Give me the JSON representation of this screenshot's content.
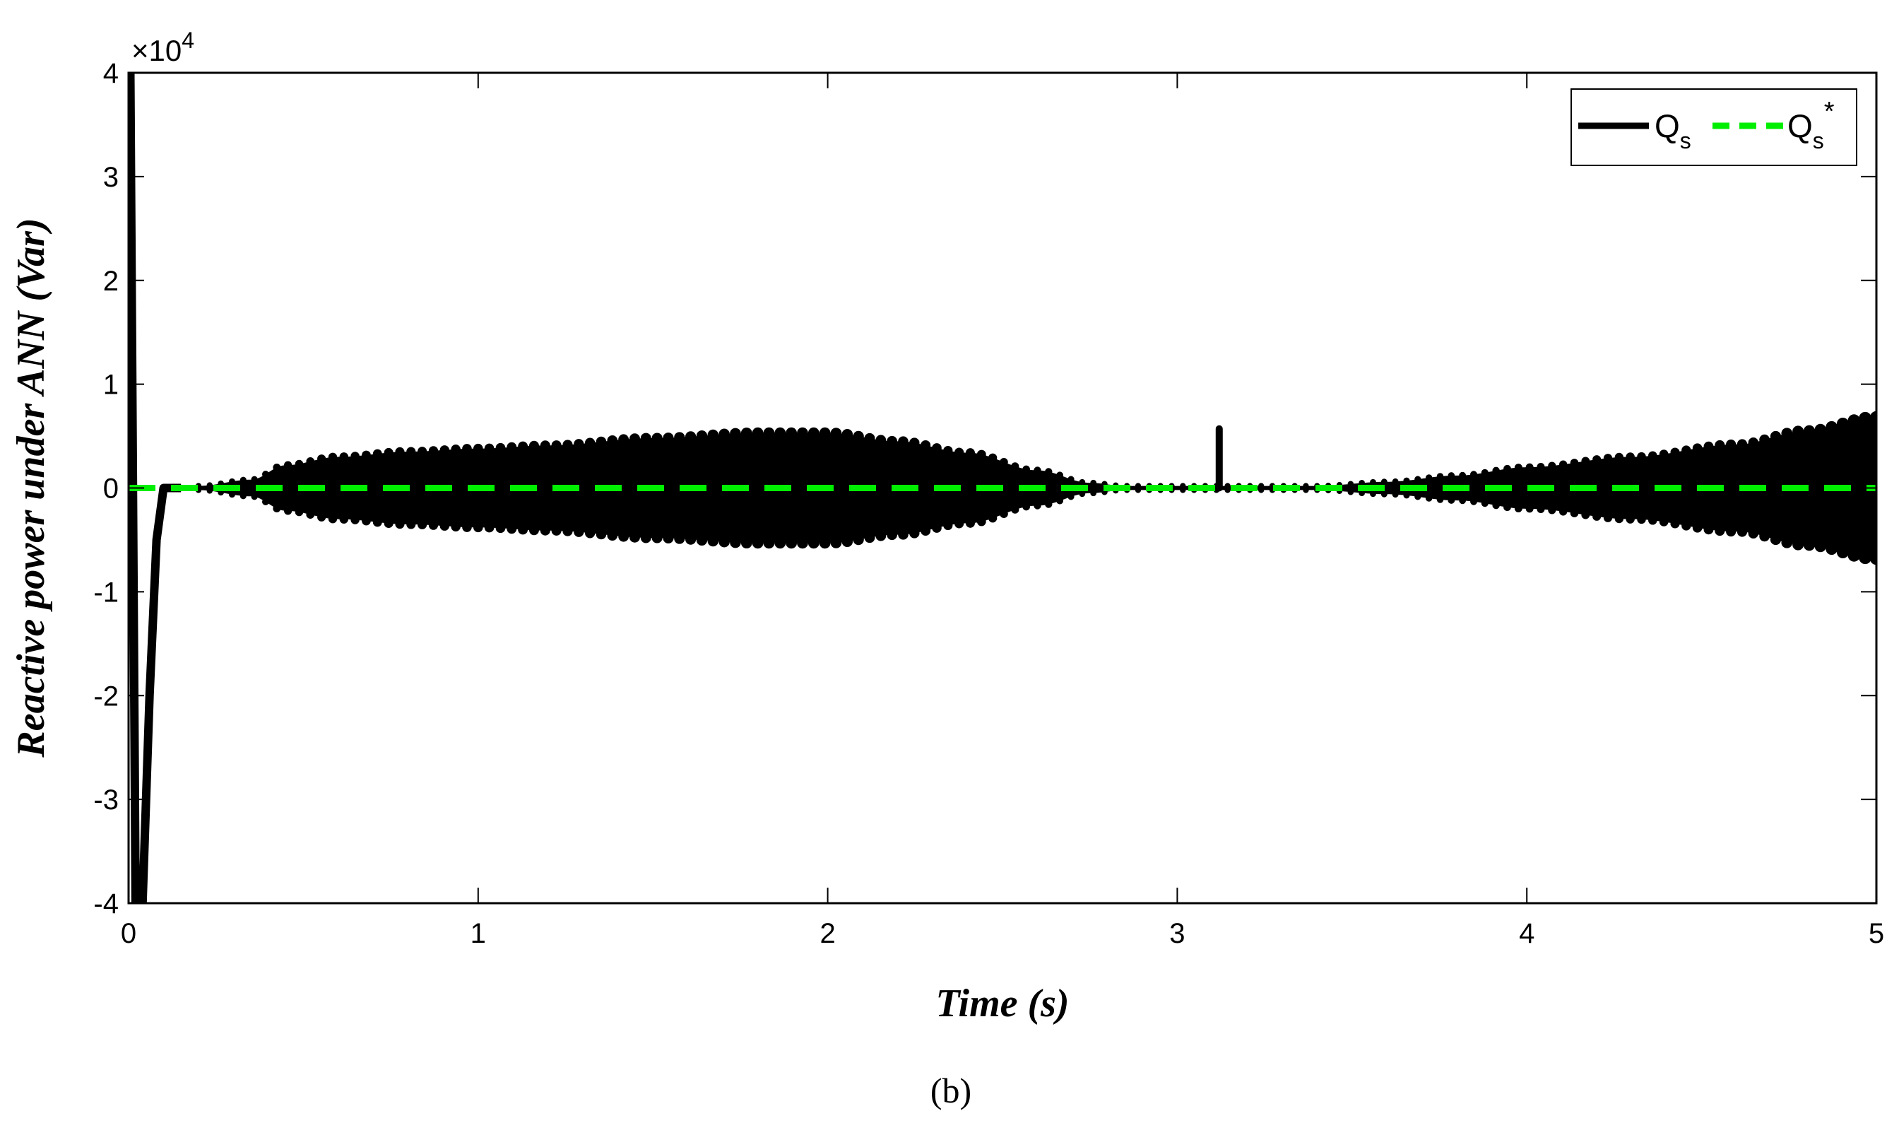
{
  "chart_data": {
    "type": "line",
    "xlabel": "Time (s)",
    "ylabel": "Reactive power under ANN (Var)",
    "y_multiplier": "×10^4",
    "xlim": [
      0,
      5
    ],
    "ylim": [
      -40000,
      40000
    ],
    "x_ticks": [
      "0",
      "1",
      "2",
      "3",
      "4",
      "5"
    ],
    "y_ticks": [
      "-4",
      "-3",
      "-2",
      "-1",
      "0",
      "1",
      "2",
      "3",
      "4"
    ],
    "grid": false,
    "legend_position": "top-right",
    "panel_label": "(b)",
    "colors": {
      "qs": "#000000",
      "qs_ref": "#00ee00"
    },
    "series": [
      {
        "name": "Q_s",
        "style": "solid",
        "description": "oscillating signal; envelope half-amplitude (Var) vs time",
        "transient": {
          "x": [
            0.0,
            0.005,
            0.02,
            0.04,
            0.06,
            0.08,
            0.1,
            0.15
          ],
          "y": [
            40000,
            40000,
            -40000,
            -40000,
            -20000,
            -5000,
            0,
            0
          ]
        },
        "envelope": {
          "x": [
            0.2,
            0.35,
            0.45,
            0.6,
            0.8,
            1.0,
            1.2,
            1.5,
            1.8,
            2.0,
            2.2,
            2.4,
            2.6,
            2.75,
            2.85,
            3.0,
            3.2,
            3.4,
            3.6,
            3.8,
            4.0,
            4.3,
            4.6,
            4.8,
            5.0
          ],
          "y": [
            200,
            800,
            2200,
            3000,
            3500,
            3800,
            4100,
            4800,
            5300,
            5300,
            4500,
            3400,
            1700,
            500,
            200,
            200,
            200,
            200,
            600,
            1200,
            2000,
            3000,
            4200,
            5500,
            6800
          ]
        },
        "spike": {
          "x": 3.12,
          "y": 5700
        }
      },
      {
        "name": "Q_s*",
        "style": "dashed",
        "x": [
          0,
          5
        ],
        "y": [
          0,
          0
        ]
      }
    ],
    "legend": [
      {
        "base": "Q",
        "sub": "s",
        "sup": ""
      },
      {
        "base": "Q",
        "sub": "s",
        "sup": "*"
      }
    ]
  }
}
